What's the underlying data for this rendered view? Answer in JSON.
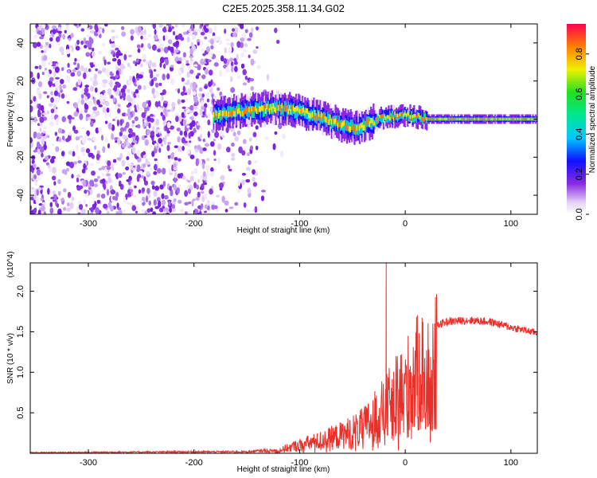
{
  "title": "C2E5.2025.358.11.34.G02",
  "chart_data": [
    {
      "type": "heatmap",
      "xlabel": "Height of straight line (km)",
      "ylabel": "Frequency (Hz)",
      "xlim": [
        -355,
        125
      ],
      "ylim": [
        -50,
        50
      ],
      "xticks": [
        -300,
        -200,
        -100,
        0,
        100
      ],
      "yticks": [
        -40,
        -20,
        0,
        20,
        40
      ],
      "colorbar": {
        "label": "Normalized spectral amplitude",
        "range": [
          0,
          0.95
        ],
        "ticks": [
          0.0,
          0.2,
          0.4,
          0.6,
          0.8
        ]
      },
      "ridge": [
        {
          "x": -180,
          "y": 2
        },
        {
          "x": -160,
          "y": 4
        },
        {
          "x": -140,
          "y": 5
        },
        {
          "x": -120,
          "y": 6
        },
        {
          "x": -100,
          "y": 4
        },
        {
          "x": -80,
          "y": 1
        },
        {
          "x": -60,
          "y": -3
        },
        {
          "x": -45,
          "y": -5
        },
        {
          "x": -35,
          "y": -2
        },
        {
          "x": -20,
          "y": 1
        },
        {
          "x": 0,
          "y": 2
        },
        {
          "x": 20,
          "y": 0
        },
        {
          "x": 60,
          "y": 0
        },
        {
          "x": 125,
          "y": 0
        }
      ]
    },
    {
      "type": "line",
      "xlabel": "Height of straight line (km)",
      "ylabel": "SNR (10 * v/v)",
      "scale_label": "(x10^4)",
      "y_multiplier": 10000,
      "xlim": [
        -355,
        125
      ],
      "ylim": [
        0,
        2.35
      ],
      "xticks": [
        -300,
        -200,
        -100,
        0,
        100
      ],
      "yticks": [
        0.5,
        1.0,
        1.5,
        2.0
      ],
      "color": "#e8302a",
      "envelope": [
        {
          "x": -355,
          "y": 0.01
        },
        {
          "x": -200,
          "y": 0.02
        },
        {
          "x": -150,
          "y": 0.02
        },
        {
          "x": -120,
          "y": 0.05
        },
        {
          "x": -100,
          "y": 0.15
        },
        {
          "x": -80,
          "y": 0.22
        },
        {
          "x": -60,
          "y": 0.32
        },
        {
          "x": -40,
          "y": 0.45
        },
        {
          "x": -30,
          "y": 0.6
        },
        {
          "x": -20,
          "y": 0.75
        },
        {
          "x": -10,
          "y": 0.95
        },
        {
          "x": 0,
          "y": 1.15
        },
        {
          "x": 10,
          "y": 1.35
        },
        {
          "x": 20,
          "y": 1.5
        },
        {
          "x": 30,
          "y": 1.6
        },
        {
          "x": 40,
          "y": 1.64
        },
        {
          "x": 60,
          "y": 1.66
        },
        {
          "x": 80,
          "y": 1.64
        },
        {
          "x": 100,
          "y": 1.57
        },
        {
          "x": 125,
          "y": 1.5
        }
      ],
      "spikes": [
        {
          "x": -18,
          "y": 2.35
        },
        {
          "x": 12,
          "y": 0.42
        }
      ]
    }
  ]
}
